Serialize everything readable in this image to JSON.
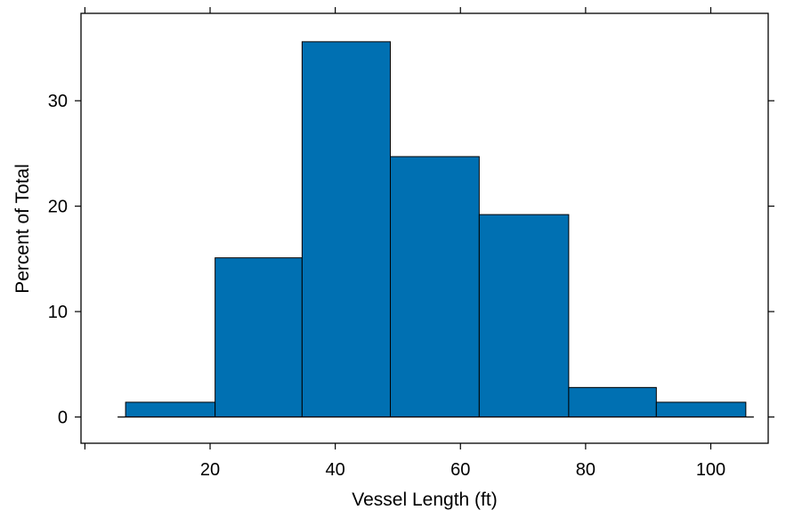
{
  "chart_data": {
    "type": "bar",
    "histogram": true,
    "bins": [
      {
        "x0": 6.5,
        "x1": 20.8,
        "value": 1.4
      },
      {
        "x0": 20.8,
        "x1": 34.7,
        "value": 15.1
      },
      {
        "x0": 34.7,
        "x1": 48.8,
        "value": 35.6
      },
      {
        "x0": 48.8,
        "x1": 63.0,
        "value": 24.7
      },
      {
        "x0": 63.0,
        "x1": 77.3,
        "value": 19.2
      },
      {
        "x0": 77.3,
        "x1": 91.3,
        "value": 2.8
      },
      {
        "x0": 91.3,
        "x1": 105.6,
        "value": 1.4
      }
    ],
    "xlabel": "Vessel Length (ft)",
    "ylabel": "Percent of Total",
    "xlim": [
      0,
      110
    ],
    "ylim": [
      -2.6,
      38.8
    ],
    "xticks": [
      20,
      40,
      60,
      80,
      100
    ],
    "yticks": [
      0,
      10,
      20,
      30
    ],
    "xtick_labels": [
      "20",
      "40",
      "60",
      "80",
      "100"
    ],
    "ytick_labels": [
      "0",
      "10",
      "20",
      "30"
    ],
    "bar_color": "#0070b2",
    "bar_edge_color": "#000000",
    "grid": false,
    "legend": "none"
  }
}
